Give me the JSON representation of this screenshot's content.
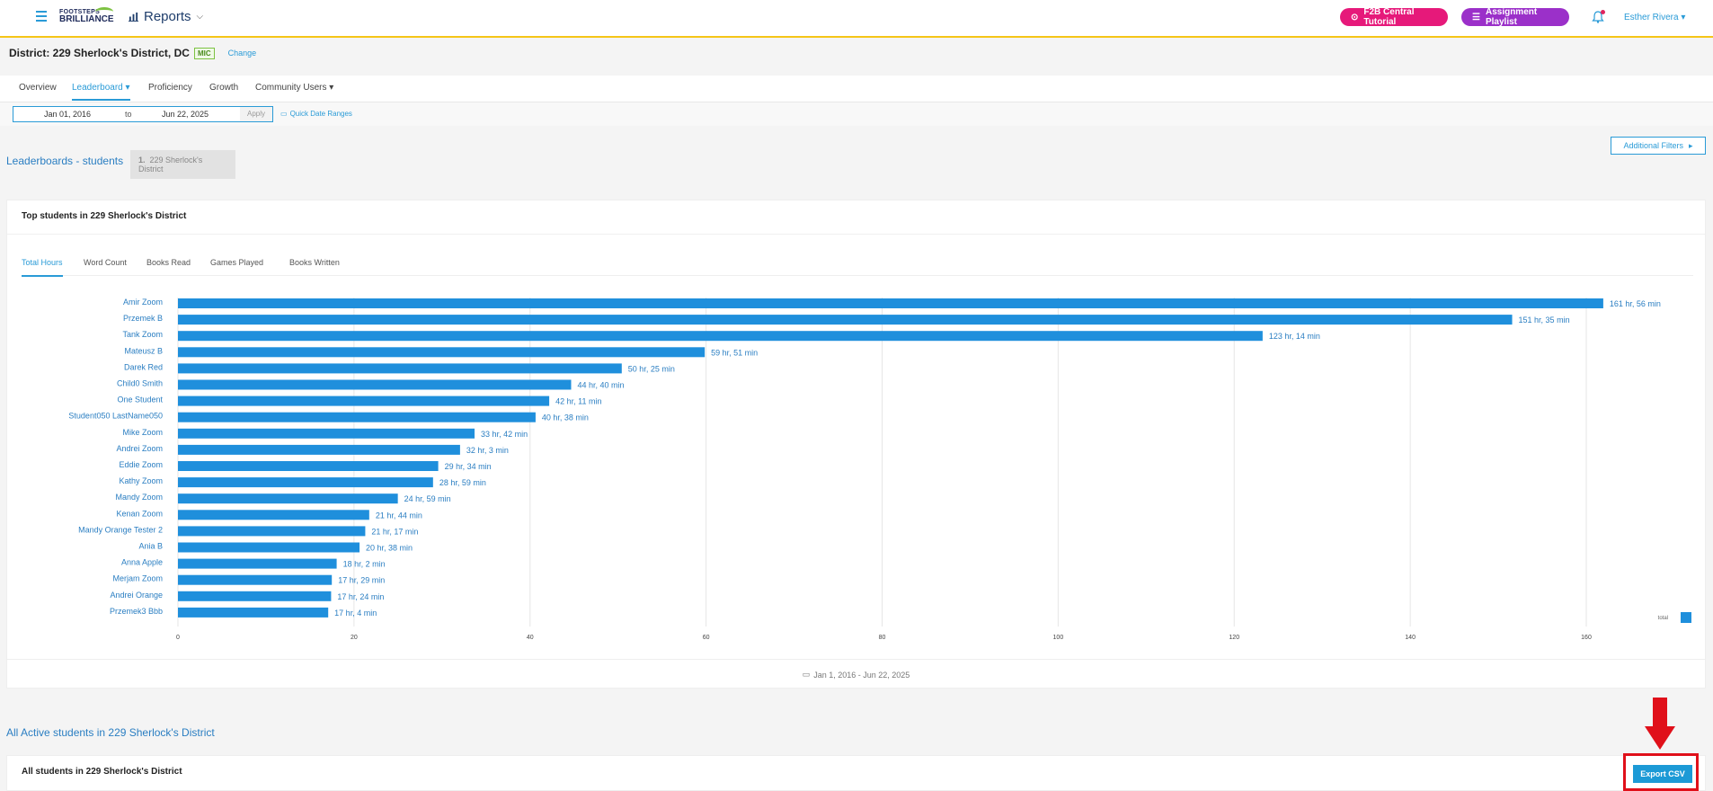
{
  "header": {
    "logo_line1": "FOOTSTEPS",
    "logo_line2": "BRILLIANCE",
    "section_label": "Reports",
    "tutorial_button": "F2B Central Tutorial",
    "playlist_button": "Assignment Playlist",
    "user_name": "Esther Rivera"
  },
  "district": {
    "label": "District: 229 Sherlock's District, DC",
    "badge": "MIC",
    "change_link": "Change"
  },
  "nav_tabs": [
    "Overview",
    "Leaderboard",
    "Proficiency",
    "Growth",
    "Community Users"
  ],
  "active_nav_tab": "Leaderboard",
  "date_filter": {
    "start": "Jan 01, 2016",
    "to_label": "to",
    "end": "Jun 22, 2025",
    "apply_label": "Apply",
    "quick_ranges_label": "Quick Date Ranges"
  },
  "leaderboard": {
    "title": "Leaderboards - students",
    "breadcrumb_number": "1.",
    "breadcrumb_label": "229 Sherlock's District",
    "additional_filters_label": "Additional Filters"
  },
  "top_card": {
    "title": "Top students in 229 Sherlock's District",
    "metric_tabs": [
      "Total Hours",
      "Word Count",
      "Books Read",
      "Games Played",
      "Books Written"
    ],
    "active_metric": "Total Hours",
    "footer_date": "Jan 1, 2016 - Jun 22, 2025"
  },
  "chart_data": {
    "type": "bar",
    "orientation": "horizontal",
    "categories": [
      "Amir Zoom",
      "Przemek B",
      "Tank Zoom",
      "Mateusz B",
      "Darek Red",
      "Child0 Smith",
      "One Student",
      "Student050 LastName050",
      "Mike Zoom",
      "Andrei Zoom",
      "Eddie Zoom",
      "Kathy Zoom",
      "Mandy Zoom",
      "Kenan Zoom",
      "Mandy Orange Tester 2",
      "Ania B",
      "Anna Apple",
      "Merjam Zoom",
      "Andrei Orange",
      "Przemek3 Bbb"
    ],
    "values": [
      161.93,
      151.58,
      123.23,
      59.85,
      50.42,
      44.67,
      42.18,
      40.63,
      33.7,
      32.05,
      29.57,
      28.98,
      24.98,
      21.73,
      21.28,
      20.63,
      18.03,
      17.48,
      17.4,
      17.07
    ],
    "labels": [
      "161 hr, 56 min",
      "151 hr, 35 min",
      "123 hr, 14 min",
      "59 hr, 51 min",
      "50 hr, 25 min",
      "44 hr, 40 min",
      "42 hr, 11 min",
      "40 hr, 38 min",
      "33 hr, 42 min",
      "32 hr, 3 min",
      "29 hr, 34 min",
      "28 hr, 59 min",
      "24 hr, 59 min",
      "21 hr, 44 min",
      "21 hr, 17 min",
      "20 hr, 38 min",
      "18 hr, 2 min",
      "17 hr, 29 min",
      "17 hr, 24 min",
      "17 hr, 4 min"
    ],
    "xticks": [
      0,
      20,
      40,
      60,
      80,
      100,
      120,
      140,
      160
    ],
    "xlim": [
      0,
      170
    ],
    "legend": "total",
    "legend_position": "bottom-right",
    "bar_color": "#1f8fdc",
    "grid": true
  },
  "active_section": {
    "title": "All Active students in 229 Sherlock's District",
    "card_title": "All students in 229 Sherlock's District",
    "export_label": "Export CSV"
  },
  "colors": {
    "accent": "#2a9bd7",
    "tutorial": "#e6197a",
    "playlist": "#9b30c9",
    "highlight": "#e0101a"
  }
}
